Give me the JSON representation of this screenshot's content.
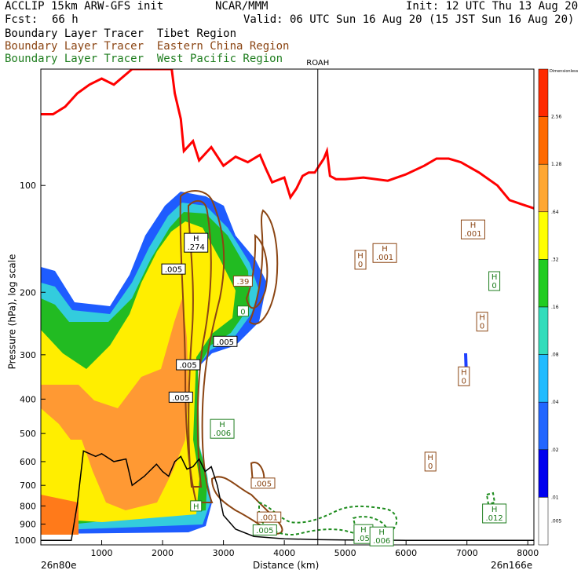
{
  "header": {
    "left_line1": "ACCLIP 15km ARW-GFS init",
    "center_line1": "NCAR/MMM",
    "right_line1": "Init: 12 UTC Thu 13 Aug 20",
    "left_line2_label": "Fcst:",
    "left_line2_value": "66 h",
    "right_line2": "Valid: 06 UTC Sun 16 Aug 20 (15 JST Sun 16 Aug 20)"
  },
  "legend": {
    "line1": "Boundary Layer Tracer  Tibet Region",
    "line2": "Boundary Layer Tracer  Eastern China Region",
    "line3": "Boundary Layer Tracer  West Pacific Region",
    "color1": "#000000",
    "color2": "#8b4513",
    "color3": "#1e7d1e"
  },
  "chart_data": {
    "type": "cross-section",
    "xlabel": "Distance (km)",
    "ylabel": "Pressure (hPa), log scale",
    "xlim": [
      0,
      8100
    ],
    "ylim": [
      1030,
      47
    ],
    "x_ticks": [
      "1000",
      "2000",
      "3000",
      "4000",
      "5000",
      "6000",
      "7000",
      "8000"
    ],
    "x_tick_values": [
      1000,
      2000,
      3000,
      4000,
      5000,
      6000,
      7000,
      8000
    ],
    "y_ticks": [
      "100",
      "200",
      "300",
      "400",
      "500",
      "600",
      "700",
      "800",
      "900",
      "1000"
    ],
    "y_tick_values": [
      100,
      200,
      300,
      400,
      500,
      600,
      700,
      800,
      900,
      1000
    ],
    "left_endpoint": "26n80e",
    "right_endpoint": "26n166e",
    "station": {
      "name": "ROAH",
      "x": 4550
    },
    "colorbar": {
      "title": "Dimensionless",
      "levels": [
        "2.56",
        "1.28",
        ".64",
        ".32",
        ".16",
        ".08",
        ".04",
        ".02",
        ".01",
        ".005"
      ],
      "colors": [
        "#ff2a00",
        "#ff6a00",
        "#ffa733",
        "#ffff00",
        "#22cc22",
        "#33ddbb",
        "#22bbff",
        "#2266ff",
        "#0000ee",
        "#ffffff"
      ]
    },
    "tropopause": {
      "color": "#ff0000",
      "x": [
        0,
        200,
        400,
        600,
        800,
        1000,
        1200,
        1500,
        1700,
        1800,
        2000,
        2150,
        2200,
        2300,
        2350,
        2500,
        2600,
        2800,
        3000,
        3200,
        3400,
        3600,
        3700,
        3800,
        4000,
        4100,
        4200,
        4300,
        4400,
        4500,
        4650,
        4700,
        4750,
        4850,
        5000,
        5300,
        5700,
        6000,
        6300,
        6500,
        6700,
        6900,
        7200,
        7500,
        7700,
        7900,
        8100
      ],
      "p": [
        63,
        63,
        60,
        55,
        52,
        50,
        52,
        47,
        47,
        47,
        47,
        47,
        55,
        65,
        80,
        75,
        85,
        78,
        88,
        83,
        86,
        82,
        90,
        98,
        95,
        108,
        102,
        94,
        92,
        92,
        84,
        80,
        94,
        96,
        96,
        95,
        97,
        93,
        88,
        84,
        84,
        86,
        92,
        100,
        110,
        113,
        116
      ]
    },
    "terrain": {
      "color": "#000000",
      "x": [
        0,
        300,
        500,
        600,
        700,
        900,
        1000,
        1200,
        1400,
        1500,
        1700,
        1900,
        2000,
        2100,
        2200,
        2300,
        2400,
        2500,
        2600,
        2700,
        2800,
        2900,
        3000,
        3200,
        3500,
        4000,
        4500,
        5000,
        6000,
        7000,
        8100
      ],
      "p": [
        1000,
        1000,
        1000,
        790,
        560,
        580,
        570,
        600,
        590,
        700,
        660,
        610,
        640,
        660,
        600,
        580,
        630,
        620,
        590,
        640,
        620,
        700,
        850,
        930,
        975,
        990,
        995,
        998,
        1000,
        1000,
        1000
      ]
    },
    "highs": [
      {
        "label": "H",
        "value": ".274",
        "x": 2550,
        "p": 145,
        "region": "tibet"
      },
      {
        "label": "",
        "value": ".005",
        "x": 2180,
        "p": 172,
        "region": "tibet"
      },
      {
        "label": "",
        "value": ".39",
        "x": 3320,
        "p": 186,
        "region": "eastern-china"
      },
      {
        "label": "",
        "value": "0",
        "x": 3320,
        "p": 226,
        "region": "west-pacific"
      },
      {
        "label": "",
        "value": ".005",
        "x": 3030,
        "p": 275,
        "region": "tibet"
      },
      {
        "label": "",
        "value": ".005",
        "x": 2420,
        "p": 320,
        "region": "tibet"
      },
      {
        "label": "",
        "value": ".005",
        "x": 2300,
        "p": 395,
        "region": "tibet"
      },
      {
        "label": "H",
        "value": ".006",
        "x": 2980,
        "p": 485,
        "region": "west-pacific"
      },
      {
        "label": "H",
        "value": "0",
        "x": 5250,
        "p": 162,
        "region": "eastern-china"
      },
      {
        "label": "H",
        "value": ".001",
        "x": 5650,
        "p": 155,
        "region": "eastern-china"
      },
      {
        "label": "H",
        "value": ".001",
        "x": 7100,
        "p": 133,
        "region": "eastern-china"
      },
      {
        "label": "H",
        "value": "0",
        "x": 7450,
        "p": 186,
        "region": "west-pacific"
      },
      {
        "label": "H",
        "value": "0",
        "x": 7250,
        "p": 242,
        "region": "eastern-china"
      },
      {
        "label": "H",
        "value": "0",
        "x": 6950,
        "p": 345,
        "region": "eastern-china"
      },
      {
        "label": "H",
        "value": "0",
        "x": 6400,
        "p": 600,
        "region": "eastern-china"
      },
      {
        "label": "",
        "value": ".005",
        "x": 3650,
        "p": 690,
        "region": "eastern-china"
      },
      {
        "label": "H",
        "value": "",
        "x": 2550,
        "p": 800,
        "region": "west-pacific"
      },
      {
        "label": "",
        "value": ".001",
        "x": 3750,
        "p": 860,
        "region": "eastern-china"
      },
      {
        "label": "",
        "value": ".005",
        "x": 3680,
        "p": 935,
        "region": "west-pacific"
      },
      {
        "label": "H",
        "value": ".012",
        "x": 7450,
        "p": 840,
        "region": "west-pacific"
      },
      {
        "label": "H",
        "value": ".05",
        "x": 5300,
        "p": 960,
        "region": "west-pacific"
      },
      {
        "label": "H",
        "value": ".006",
        "x": 5600,
        "p": 975,
        "region": "west-pacific"
      }
    ]
  }
}
